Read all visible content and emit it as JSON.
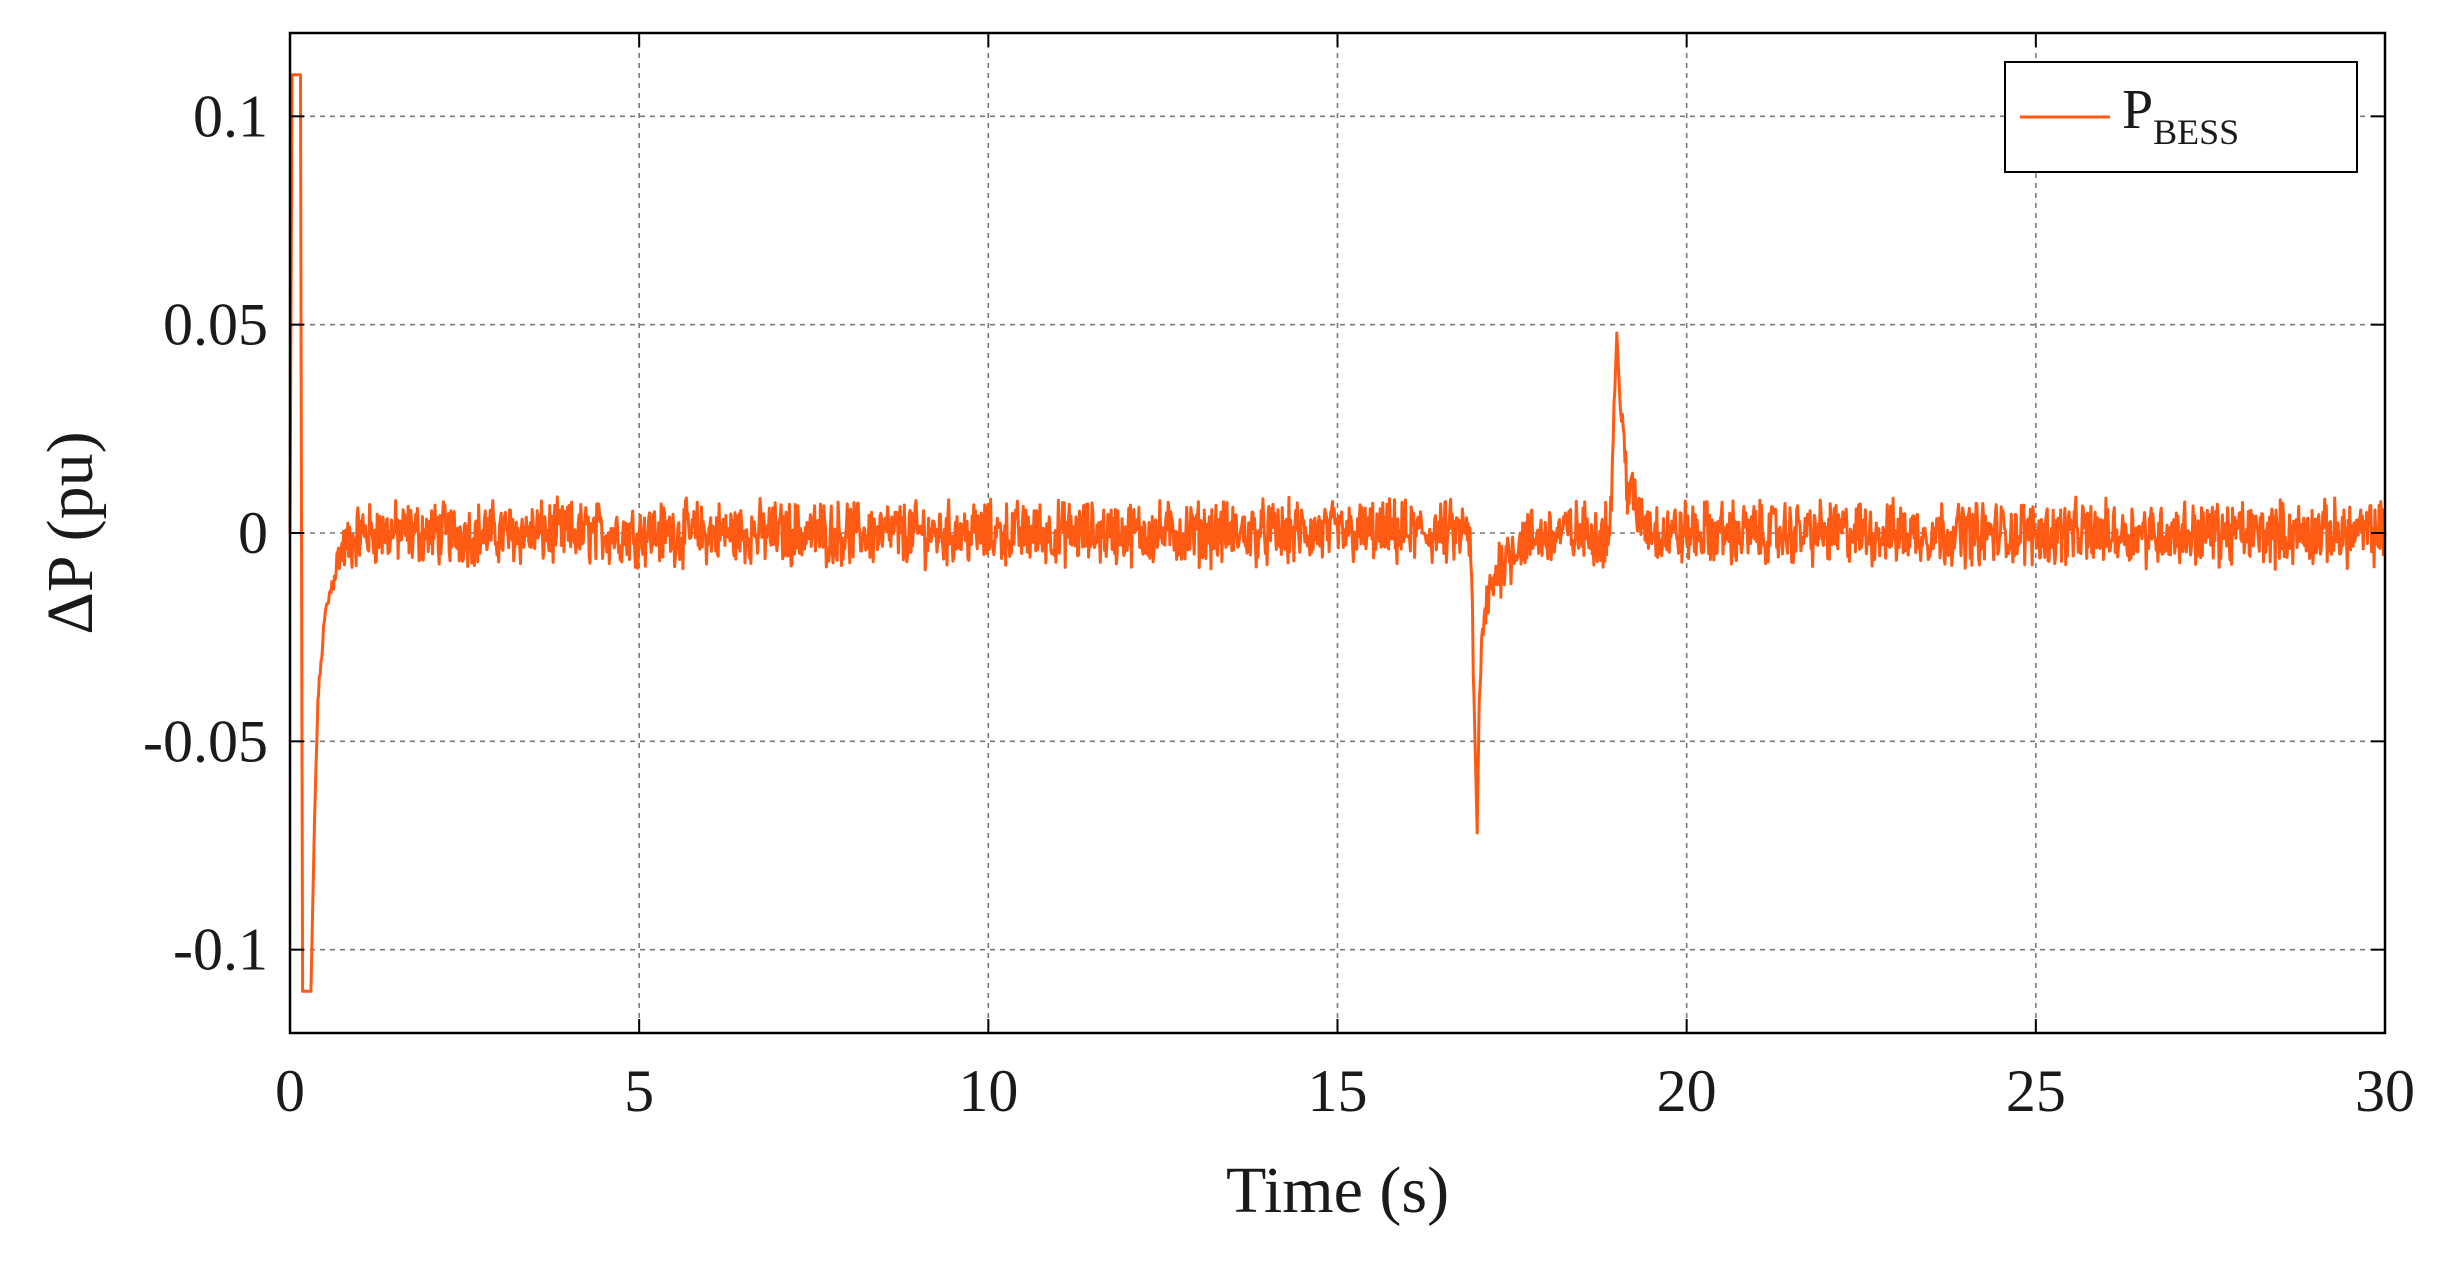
{
  "chart_data": {
    "type": "line",
    "title": "",
    "xlabel": "Time (s)",
    "ylabel": "ΔP (pu)",
    "xlim": [
      0,
      30
    ],
    "ylim": [
      -0.12,
      0.12
    ],
    "xticks": [
      0,
      5,
      10,
      15,
      20,
      25,
      30
    ],
    "xtick_labels": [
      "0",
      "5",
      "10",
      "15",
      "20",
      "25",
      "30"
    ],
    "yticks": [
      0.1,
      0.05,
      0,
      -0.05,
      -0.1
    ],
    "ytick_labels": [
      "0.1",
      "0.05",
      "0",
      "-0.05",
      "-0.1"
    ],
    "grid": true,
    "legend_position": "top-right",
    "series": [
      {
        "name": "P",
        "name_subscript": "BESS",
        "color": "#FF5A14",
        "noise_amplitude": 0.006,
        "x": [
          0,
          0.03,
          0.05,
          0.1,
          0.15,
          0.18,
          0.22,
          0.3,
          0.35,
          0.4,
          0.5,
          0.7,
          1.0,
          1.5,
          16.9,
          17.0,
          17.03,
          17.1,
          17.3,
          17.6,
          18.2,
          18.9,
          19.0,
          19.05,
          19.15,
          19.3,
          19.6,
          30
        ],
        "y": [
          0,
          0.11,
          0.11,
          0.11,
          0.11,
          -0.11,
          -0.11,
          -0.11,
          -0.07,
          -0.04,
          -0.02,
          -0.005,
          0,
          0,
          0,
          -0.072,
          -0.04,
          -0.02,
          -0.008,
          -0.002,
          0,
          0,
          0.048,
          0.03,
          0.012,
          0.004,
          0,
          0
        ]
      }
    ]
  }
}
